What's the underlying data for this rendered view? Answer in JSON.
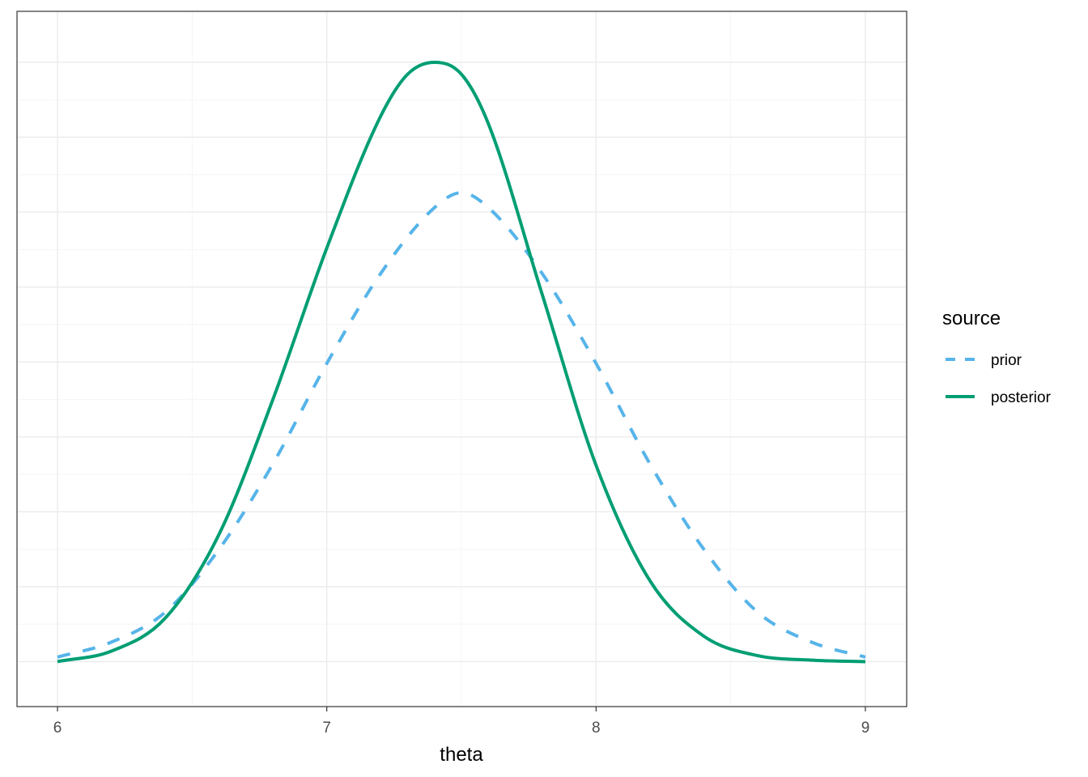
{
  "chart_data": {
    "type": "line",
    "title": "",
    "xlabel": "theta",
    "ylabel": "",
    "xlim": [
      6,
      9
    ],
    "ylim": [
      -0.003,
      0.0434
    ],
    "x_ticks": [
      6,
      7,
      8,
      9
    ],
    "x_tick_labels": [
      "6",
      "7",
      "8",
      "9"
    ],
    "y_tick_labels": [],
    "grid": true,
    "legend": {
      "title": "source",
      "position": "right",
      "entries": [
        {
          "label": "prior",
          "color": "#56B4E9",
          "linestyle": "dashed"
        },
        {
          "label": "posterior",
          "color": "#009E73",
          "linestyle": "solid"
        }
      ]
    },
    "series": [
      {
        "name": "prior",
        "color": "#56B4E9",
        "linestyle": "dashed",
        "x": [
          6.0,
          6.2,
          6.4,
          6.6,
          6.8,
          7.0,
          7.2,
          7.4,
          7.5,
          7.6,
          7.8,
          8.0,
          8.2,
          8.4,
          8.6,
          8.8,
          9.0
        ],
        "y": [
          0.0003,
          0.0013,
          0.0033,
          0.0075,
          0.0132,
          0.0199,
          0.0259,
          0.0303,
          0.0313,
          0.0303,
          0.0259,
          0.0199,
          0.0132,
          0.0075,
          0.0033,
          0.0013,
          0.0003
        ]
      },
      {
        "name": "posterior",
        "color": "#009E73",
        "linestyle": "solid",
        "x": [
          6.0,
          6.2,
          6.4,
          6.6,
          6.8,
          7.0,
          7.2,
          7.3,
          7.4,
          7.5,
          7.6,
          7.8,
          8.0,
          8.2,
          8.4,
          8.6,
          8.8,
          9.0
        ],
        "y": [
          0.0,
          0.0007,
          0.0029,
          0.0085,
          0.0175,
          0.0276,
          0.0364,
          0.0392,
          0.04,
          0.0392,
          0.0359,
          0.0245,
          0.0131,
          0.0054,
          0.0017,
          0.0004,
          0.0001,
          0.0
        ]
      }
    ]
  }
}
